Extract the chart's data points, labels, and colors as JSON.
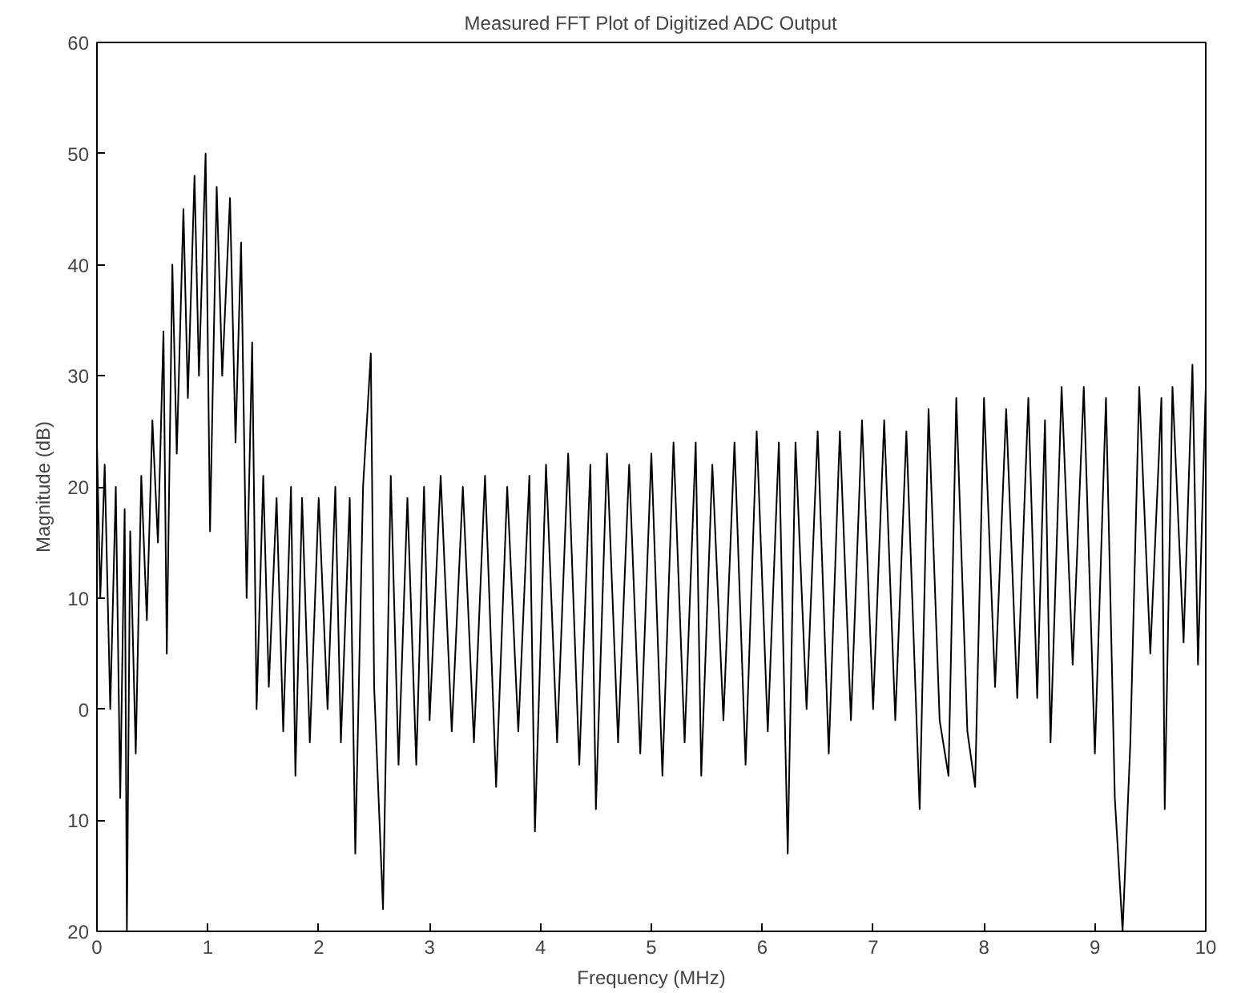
{
  "chart_data": {
    "type": "line",
    "title": "Measured FFT Plot of Digitized ADC Output",
    "xlabel": "Frequency (MHz)",
    "ylabel": "Magnitude (dB)",
    "xlim": [
      0,
      10
    ],
    "ylim": [
      -20,
      60
    ],
    "xticks": [
      0,
      1,
      2,
      3,
      4,
      5,
      6,
      7,
      8,
      9,
      10
    ],
    "yticks": [
      {
        "value": -20,
        "label": "20"
      },
      {
        "value": -10,
        "label": "10"
      },
      0,
      10,
      20,
      30,
      40,
      50,
      60
    ],
    "grid": false,
    "marker": "none",
    "line_style": "solid",
    "series": [
      {
        "color": "#000000",
        "x": [
          0.0,
          0.03,
          0.07,
          0.12,
          0.17,
          0.21,
          0.25,
          0.27,
          0.3,
          0.35,
          0.4,
          0.45,
          0.5,
          0.55,
          0.6,
          0.63,
          0.68,
          0.72,
          0.78,
          0.82,
          0.88,
          0.92,
          0.98,
          1.02,
          1.08,
          1.13,
          1.2,
          1.25,
          1.3,
          1.35,
          1.4,
          1.44,
          1.5,
          1.55,
          1.62,
          1.68,
          1.75,
          1.79,
          1.85,
          1.92,
          2.0,
          2.08,
          2.15,
          2.2,
          2.28,
          2.33,
          2.4,
          2.47,
          2.5,
          2.58,
          2.65,
          2.72,
          2.8,
          2.88,
          2.95,
          3.0,
          3.1,
          3.2,
          3.3,
          3.4,
          3.5,
          3.6,
          3.7,
          3.8,
          3.9,
          3.95,
          4.05,
          4.15,
          4.25,
          4.35,
          4.45,
          4.5,
          4.6,
          4.7,
          4.8,
          4.9,
          5.0,
          5.1,
          5.2,
          5.3,
          5.4,
          5.45,
          5.55,
          5.65,
          5.75,
          5.85,
          5.95,
          6.05,
          6.15,
          6.23,
          6.3,
          6.4,
          6.5,
          6.6,
          6.7,
          6.8,
          6.9,
          7.0,
          7.1,
          7.2,
          7.3,
          7.42,
          7.5,
          7.6,
          7.68,
          7.75,
          7.85,
          7.92,
          8.0,
          8.1,
          8.2,
          8.3,
          8.4,
          8.48,
          8.55,
          8.6,
          8.7,
          8.8,
          8.9,
          9.0,
          9.1,
          9.18,
          9.25,
          9.32,
          9.4,
          9.5,
          9.6,
          9.63,
          9.7,
          9.8,
          9.88,
          9.93,
          10.0
        ],
        "values": [
          24,
          10,
          22,
          0,
          20,
          -8,
          18,
          -20,
          16,
          -4,
          21,
          8,
          26,
          15,
          34,
          5,
          40,
          23,
          45,
          28,
          48,
          30,
          50,
          16,
          47,
          30,
          46,
          24,
          42,
          10,
          33,
          0,
          21,
          2,
          19,
          -2,
          20,
          -6,
          19,
          -3,
          19,
          0,
          20,
          -3,
          19,
          -13,
          20,
          32,
          2,
          -18,
          21,
          -5,
          19,
          -5,
          20,
          -1,
          21,
          -2,
          20,
          -3,
          21,
          -7,
          20,
          -2,
          21,
          -11,
          22,
          -3,
          23,
          -5,
          22,
          -9,
          23,
          -3,
          22,
          -4,
          23,
          -6,
          24,
          -3,
          24,
          -6,
          22,
          -1,
          24,
          -5,
          25,
          -2,
          24,
          -13,
          24,
          0,
          25,
          -4,
          25,
          -1,
          26,
          0,
          26,
          -1,
          25,
          -9,
          27,
          -1,
          -6,
          28,
          -2,
          -7,
          28,
          2,
          27,
          1,
          28,
          1,
          26,
          -3,
          29,
          4,
          29,
          -4,
          28,
          -8,
          -20,
          -3,
          29,
          5,
          28,
          -9,
          29,
          6,
          31,
          4,
          29
        ]
      }
    ]
  }
}
